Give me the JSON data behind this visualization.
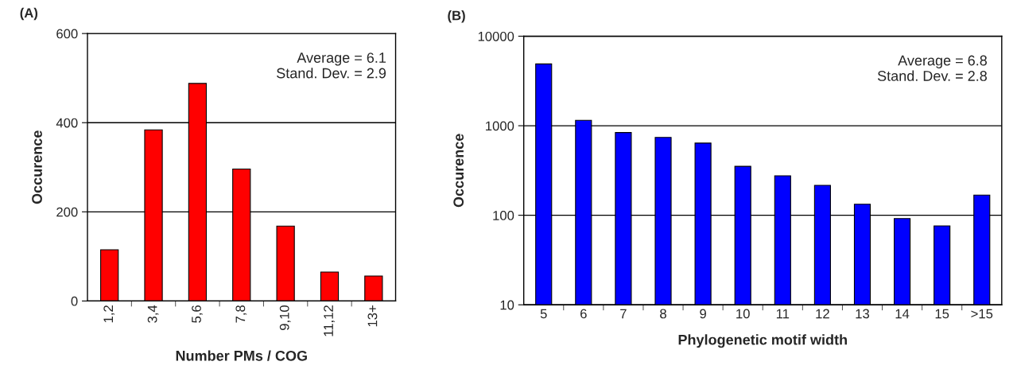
{
  "chart_data": [
    {
      "type": "bar",
      "title": "(A)",
      "xlabel": "Number PMs / COG",
      "ylabel": "Occurence",
      "categories": [
        "1,2",
        "3,4",
        "5,6",
        "7,8",
        "9,10",
        "11,12",
        "13+"
      ],
      "values": [
        115,
        384,
        488,
        296,
        168,
        65,
        56
      ],
      "color": "#ff0000",
      "ylim": [
        0,
        600
      ],
      "yticks": [
        0,
        200,
        400,
        600
      ],
      "grid": "y",
      "legend": false,
      "annotations": [
        "Average = 6.1",
        "Stand. Dev. = 2.9"
      ]
    },
    {
      "type": "bar",
      "title": "(B)",
      "xlabel": "Phylogenetic motif width",
      "ylabel": "Occurence",
      "categories": [
        "5",
        "6",
        "7",
        "8",
        "9",
        "10",
        "11",
        "12",
        "13",
        "14",
        "15",
        ">15"
      ],
      "values": [
        4900,
        1150,
        840,
        740,
        640,
        352,
        276,
        216,
        133,
        92,
        76,
        168
      ],
      "color": "#0000ff",
      "log": "y",
      "ylim": [
        10,
        10000
      ],
      "yticks": [
        10,
        100,
        1000,
        10000
      ],
      "grid": "y",
      "legend": false,
      "annotations": [
        "Average = 6.8",
        "Stand. Dev. = 2.8"
      ]
    }
  ]
}
